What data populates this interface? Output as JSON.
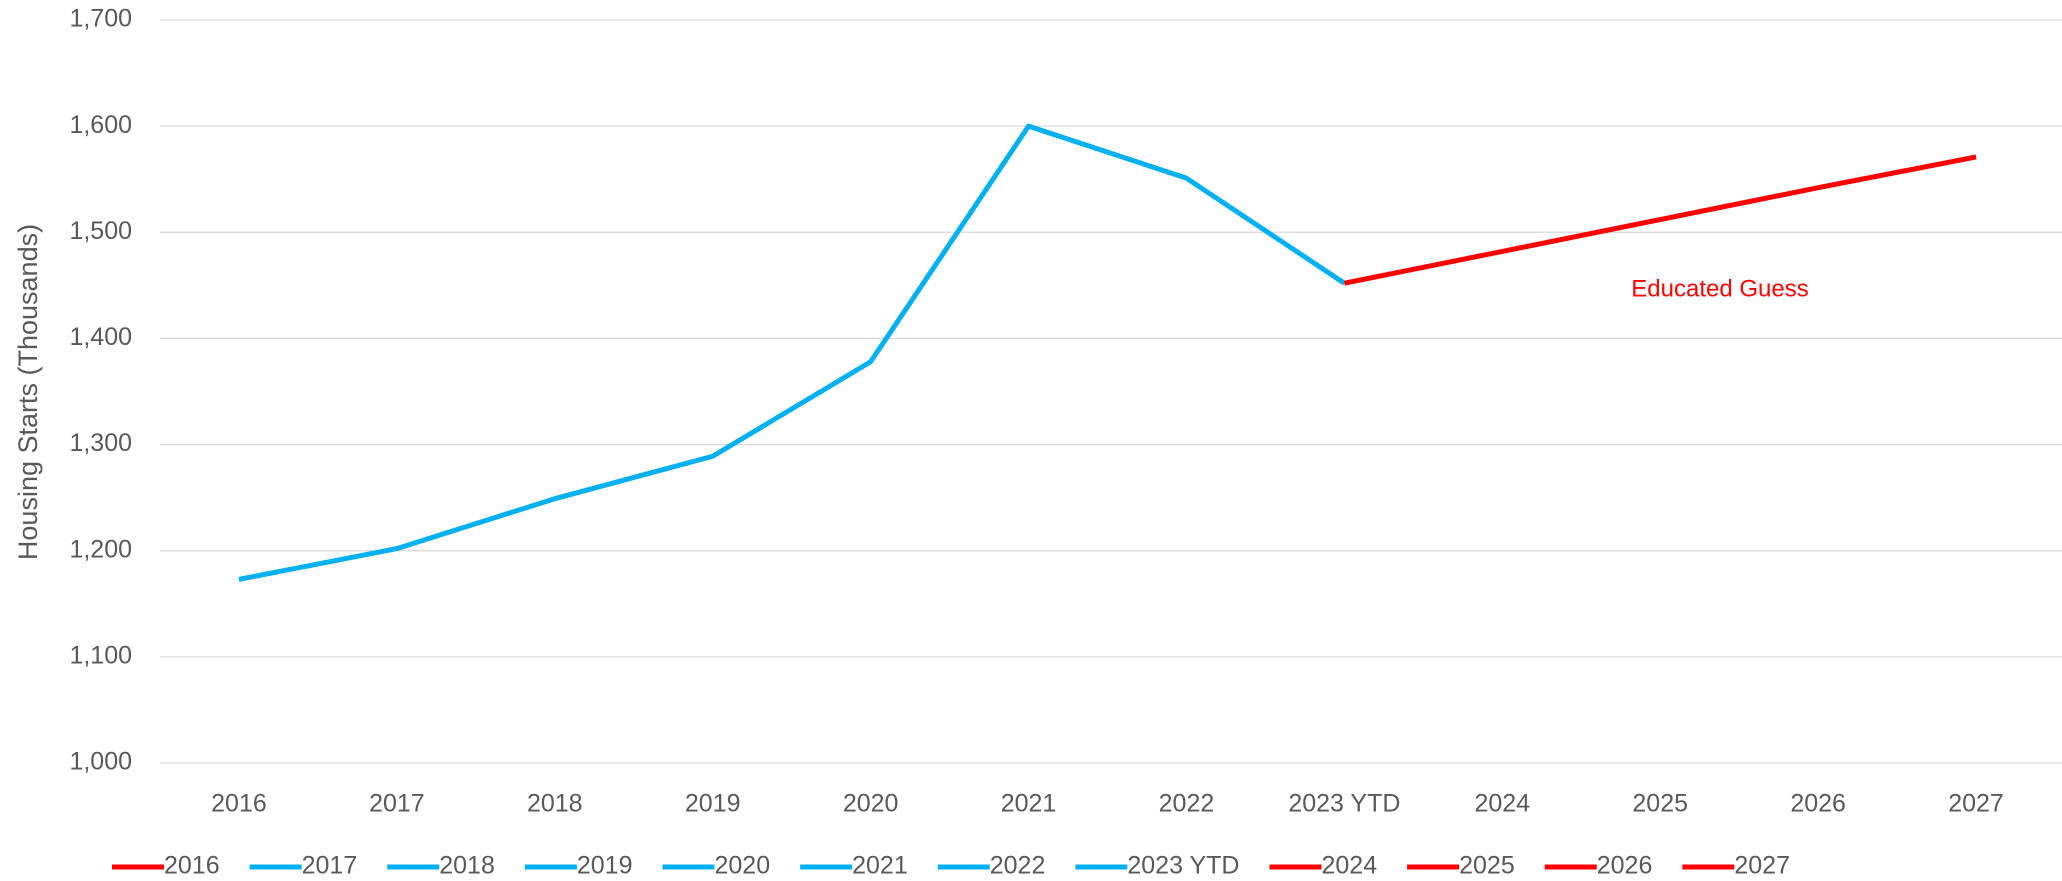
{
  "chart_data": {
    "type": "line",
    "y_label": "Housing Starts (Thousands)",
    "categories": [
      "2016",
      "2017",
      "2018",
      "2019",
      "2020",
      "2021",
      "2022",
      "2023 YTD",
      "2024",
      "2025",
      "2026",
      "2027"
    ],
    "series": [
      {
        "color": "#00b0f0",
        "values": [
          1173,
          1202,
          1249,
          1289,
          1378,
          1600,
          1551,
          1452,
          null,
          null,
          null,
          null
        ]
      },
      {
        "color": "#ff0000",
        "values": [
          null,
          null,
          null,
          null,
          null,
          null,
          null,
          1452,
          1482,
          1512,
          1542,
          1571
        ]
      }
    ],
    "point_colors": [
      "#ff0000",
      "#00b0f0",
      "#00b0f0",
      "#00b0f0",
      "#00b0f0",
      "#00b0f0",
      "#00b0f0",
      "#00b0f0",
      "#ff0000",
      "#ff0000",
      "#ff0000",
      "#ff0000"
    ],
    "annotation": {
      "text": "Educated Guess",
      "color": "#ff0000"
    },
    "ylim": [
      1000,
      1700
    ],
    "yticks": [
      {
        "value": 1000,
        "label": "1,000"
      },
      {
        "value": 1100,
        "label": "1,100"
      },
      {
        "value": 1200,
        "label": "1,200"
      },
      {
        "value": 1300,
        "label": "1,300"
      },
      {
        "value": 1400,
        "label": "1,400"
      },
      {
        "value": 1500,
        "label": "1,500"
      },
      {
        "value": 1600,
        "label": "1,600"
      },
      {
        "value": 1700,
        "label": "1,700"
      }
    ],
    "grid": true,
    "legend": "bottom"
  }
}
